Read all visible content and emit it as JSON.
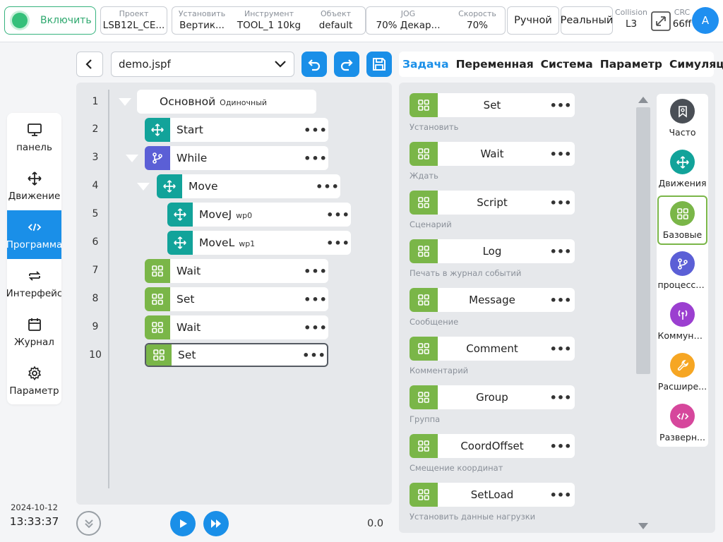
{
  "topbar": {
    "enable_label": "Включить",
    "project": {
      "label": "Проект",
      "value": "LSB12L_CE..."
    },
    "install": {
      "label": "Установить",
      "value": "Вертик..."
    },
    "tool": {
      "label": "Инструмент",
      "value": "TOOL_1  10kg"
    },
    "object": {
      "label": "Объект",
      "value": "default"
    },
    "jog": {
      "label": "JOG",
      "value": "70%  Декар..."
    },
    "speed": {
      "label": "Скорость",
      "value": "70%"
    },
    "mode": "Ручной",
    "real": "Реальный",
    "collision": {
      "label": "Collision",
      "value": "L3"
    },
    "crc": {
      "label": "CRC",
      "value": "66ff"
    },
    "avatar": "A"
  },
  "leftnav": {
    "items": [
      {
        "label": "панель",
        "icon": "monitor-icon"
      },
      {
        "label": "Движение",
        "icon": "move-icon"
      },
      {
        "label": "Программа",
        "icon": "code-icon"
      },
      {
        "label": "Интерфейс",
        "icon": "swap-icon"
      },
      {
        "label": "Журнал",
        "icon": "calendar-icon"
      },
      {
        "label": "Параметр",
        "icon": "gear-icon"
      }
    ],
    "date": "2024-10-12",
    "time": "13:33:37"
  },
  "program": {
    "file": "demo.jspf",
    "rows": [
      "1",
      "2",
      "3",
      "4",
      "5",
      "6",
      "7",
      "8",
      "9",
      "10"
    ],
    "nodes": {
      "main": {
        "label": "Основной",
        "sub": "Одиночный"
      },
      "start": {
        "label": "Start"
      },
      "while": {
        "label": "While"
      },
      "move": {
        "label": "Move"
      },
      "movej": {
        "label": "MoveJ",
        "sub": "wp0"
      },
      "movel": {
        "label": "MoveL",
        "sub": "wp1"
      },
      "wait1": {
        "label": "Wait"
      },
      "set1": {
        "label": "Set"
      },
      "wait2": {
        "label": "Wait"
      },
      "set2": {
        "label": "Set"
      }
    },
    "speed_value": "0.0"
  },
  "palette": {
    "tabs": [
      "Задача",
      "Переменная",
      "Система",
      "Параметр",
      "Симуляция"
    ],
    "blocks": [
      {
        "name": "Set",
        "desc": "Установить"
      },
      {
        "name": "Wait",
        "desc": "Ждать"
      },
      {
        "name": "Script",
        "desc": "Сценарий"
      },
      {
        "name": "Log",
        "desc": "Печать в журнал событий"
      },
      {
        "name": "Message",
        "desc": "Сообщение"
      },
      {
        "name": "Comment",
        "desc": "Комментарий"
      },
      {
        "name": "Group",
        "desc": "Группа"
      },
      {
        "name": "CoordOffset",
        "desc": "Смещение координат"
      },
      {
        "name": "SetLoad",
        "desc": "Установить данные нагрузки"
      }
    ],
    "categories": [
      {
        "label": "Часто",
        "color": "#4a4f56"
      },
      {
        "label": "Движения",
        "color": "#12a39a"
      },
      {
        "label": "Базовые",
        "color": "#7ab648"
      },
      {
        "label": "процессом",
        "color": "#5b5fd6"
      },
      {
        "label": "Коммуни...",
        "color": "#9b3fd0"
      },
      {
        "label": "Расшире...",
        "color": "#f6a623"
      },
      {
        "label": "Разверн...",
        "color": "#d6479c"
      }
    ]
  },
  "colors": {
    "accent": "#1a8fe8",
    "green": "#7ab648",
    "teal": "#12a39a",
    "purple": "#5b5fd6"
  }
}
